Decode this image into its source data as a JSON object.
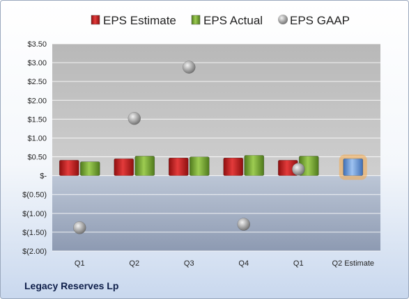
{
  "company_name": "Legacy Reserves Lp",
  "chart_data": {
    "type": "bar",
    "categories": [
      "Q1",
      "Q2",
      "Q3",
      "Q4",
      "Q1",
      "Q2 Estimate"
    ],
    "series": [
      {
        "name": "EPS Estimate",
        "kind": "bar",
        "color": "#cc1f1f",
        "values": [
          0.41,
          0.45,
          0.47,
          0.47,
          0.41,
          null
        ]
      },
      {
        "name": "EPS Actual",
        "kind": "bar",
        "color": "#79a832",
        "values": [
          0.37,
          0.52,
          0.5,
          0.54,
          0.52,
          null
        ]
      },
      {
        "name": "EPS GAAP",
        "kind": "scatter",
        "color": "#a6a6a6",
        "values": [
          -1.38,
          1.52,
          2.88,
          -1.29,
          0.17,
          null
        ]
      }
    ],
    "highlight": {
      "category": "Q2 Estimate",
      "value": 0.45,
      "color": "#6f9fdc",
      "glow": "#f5a94a"
    },
    "ylim": [
      -2.0,
      3.5
    ],
    "yticks": [
      3.5,
      3.0,
      2.5,
      2.0,
      1.5,
      1.0,
      0.5,
      0,
      -0.5,
      -1.0,
      -1.5,
      -2.0
    ],
    "ytick_labels": [
      "$3.50",
      "$3.00",
      "$2.50",
      "$2.00",
      "$1.50",
      "$1.00",
      "$0.50",
      "$-",
      "$(0.50)",
      "$(1.00)",
      "$(1.50)",
      "$(2.00)"
    ],
    "legend": "top",
    "grid": true,
    "title": "",
    "xlabel": "",
    "ylabel": ""
  }
}
